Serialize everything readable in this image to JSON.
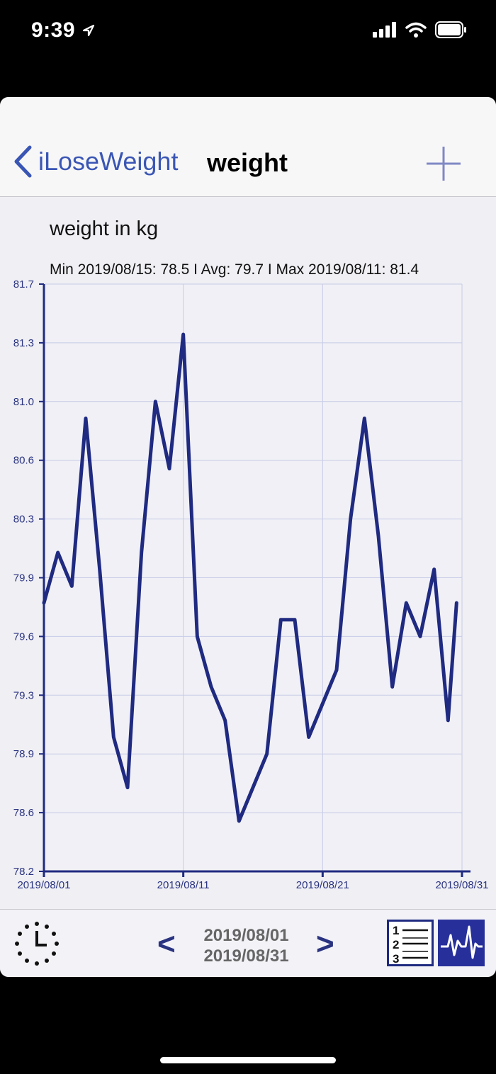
{
  "status": {
    "time": "9:39"
  },
  "nav": {
    "back_label": "iLoseWeight",
    "title": "weight"
  },
  "chart_header": {
    "title": "weight in kg",
    "stats": "Min 2019/08/15: 78.5  I  Avg: 79.7  I  Max 2019/08/11: 81.4"
  },
  "toolbar": {
    "prev": "<",
    "next": ">",
    "range_start": "2019/08/01",
    "range_end": "2019/08/31"
  },
  "colors": {
    "accent": "#3a56b5",
    "line": "#1f2a80",
    "grid": "#c8cbe6"
  },
  "chart_data": {
    "type": "line",
    "title": "weight in kg",
    "xlabel": "",
    "ylabel": "",
    "ylim": [
      78.2,
      81.7
    ],
    "y_ticks": [
      "81.7",
      "81.3",
      "81.0",
      "80.6",
      "80.3",
      "79.9",
      "79.6",
      "79.3",
      "78.9",
      "78.6",
      "78.2"
    ],
    "x_ticks": [
      "2019/08/01",
      "2019/08/11",
      "2019/08/21",
      "2019/08/31"
    ],
    "grid": true,
    "series": [
      {
        "x": [
          "2019/08/01",
          "2019/08/02",
          "2019/08/03",
          "2019/08/04",
          "2019/08/05",
          "2019/08/06",
          "2019/08/07",
          "2019/08/08",
          "2019/08/09",
          "2019/08/10",
          "2019/08/11",
          "2019/08/12",
          "2019/08/13",
          "2019/08/14",
          "2019/08/15",
          "2019/08/16",
          "2019/08/17",
          "2019/08/18",
          "2019/08/19",
          "2019/08/20",
          "2019/08/21",
          "2019/08/22",
          "2019/08/23",
          "2019/08/24",
          "2019/08/25",
          "2019/08/26",
          "2019/08/27",
          "2019/08/28",
          "2019/08/29",
          "2019/08/30"
        ],
        "values": [
          79.8,
          80.1,
          79.9,
          80.9,
          80.0,
          79.0,
          78.7,
          80.1,
          81.0,
          80.6,
          81.4,
          79.6,
          79.3,
          79.1,
          78.5,
          78.7,
          78.9,
          79.7,
          79.7,
          79.0,
          79.2,
          79.4,
          80.3,
          80.9,
          80.2,
          79.3,
          79.8,
          79.6,
          80.0,
          79.1
        ],
        "extra_point": {
          "x": "2019/08/30",
          "value": 79.8
        }
      }
    ]
  }
}
